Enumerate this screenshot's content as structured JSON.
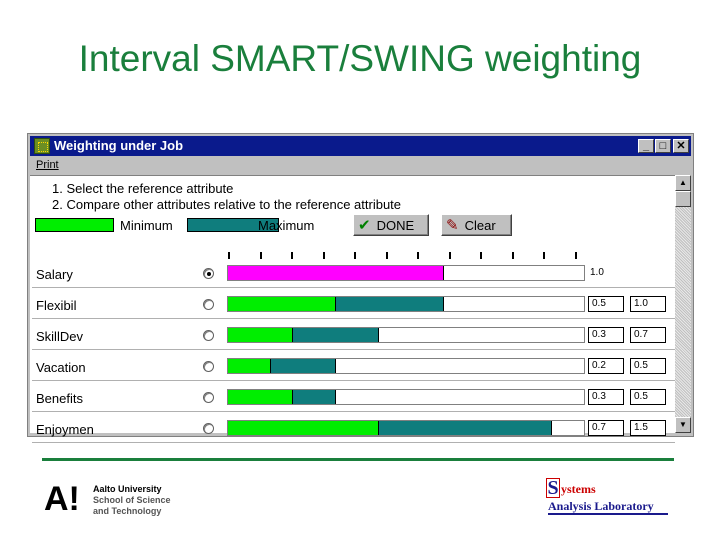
{
  "slide": {
    "title": "Interval SMART/SWING weighting"
  },
  "window": {
    "title": "Weighting under Job",
    "menu": {
      "print": "Print"
    },
    "controls": {
      "minimize": "_",
      "maximize": "□",
      "close": "✕"
    }
  },
  "instructions": {
    "line1": "1. Select the reference attribute",
    "line2": "2. Compare other attributes relative to the reference attribute"
  },
  "legend": {
    "minimum": "Minimum",
    "maximum": "Maximum",
    "min_color": "#00ee00",
    "max_color": "#0f7d7d"
  },
  "buttons": {
    "done": "DONE",
    "clear": "Clear"
  },
  "attributes": [
    {
      "name": "Salary",
      "reference": true,
      "min": 1.0,
      "max": 1.0,
      "min_text": "1.0",
      "max_text": ""
    },
    {
      "name": "Flexibil",
      "reference": false,
      "min": 0.5,
      "max": 1.0,
      "min_text": "0.5",
      "max_text": "1.0"
    },
    {
      "name": "SkillDev",
      "reference": false,
      "min": 0.3,
      "max": 0.7,
      "min_text": "0.3",
      "max_text": "0.7"
    },
    {
      "name": "Vacation",
      "reference": false,
      "min": 0.2,
      "max": 0.5,
      "min_text": "0.2",
      "max_text": "0.5"
    },
    {
      "name": "Benefits",
      "reference": false,
      "min": 0.3,
      "max": 0.5,
      "min_text": "0.3",
      "max_text": "0.5"
    },
    {
      "name": "Enjoymen",
      "reference": false,
      "min": 0.7,
      "max": 1.5,
      "min_text": "0.7",
      "max_text": "1.5"
    }
  ],
  "scale_max": 1.65,
  "footer": {
    "aalto_mark": "A!",
    "aalto_line1": "Aalto University",
    "aalto_line2": "School of Science",
    "aalto_line3": "and Technology",
    "sal_initial": "S",
    "sal_line1": "ystems",
    "sal_line2": "Analysis Laboratory"
  }
}
